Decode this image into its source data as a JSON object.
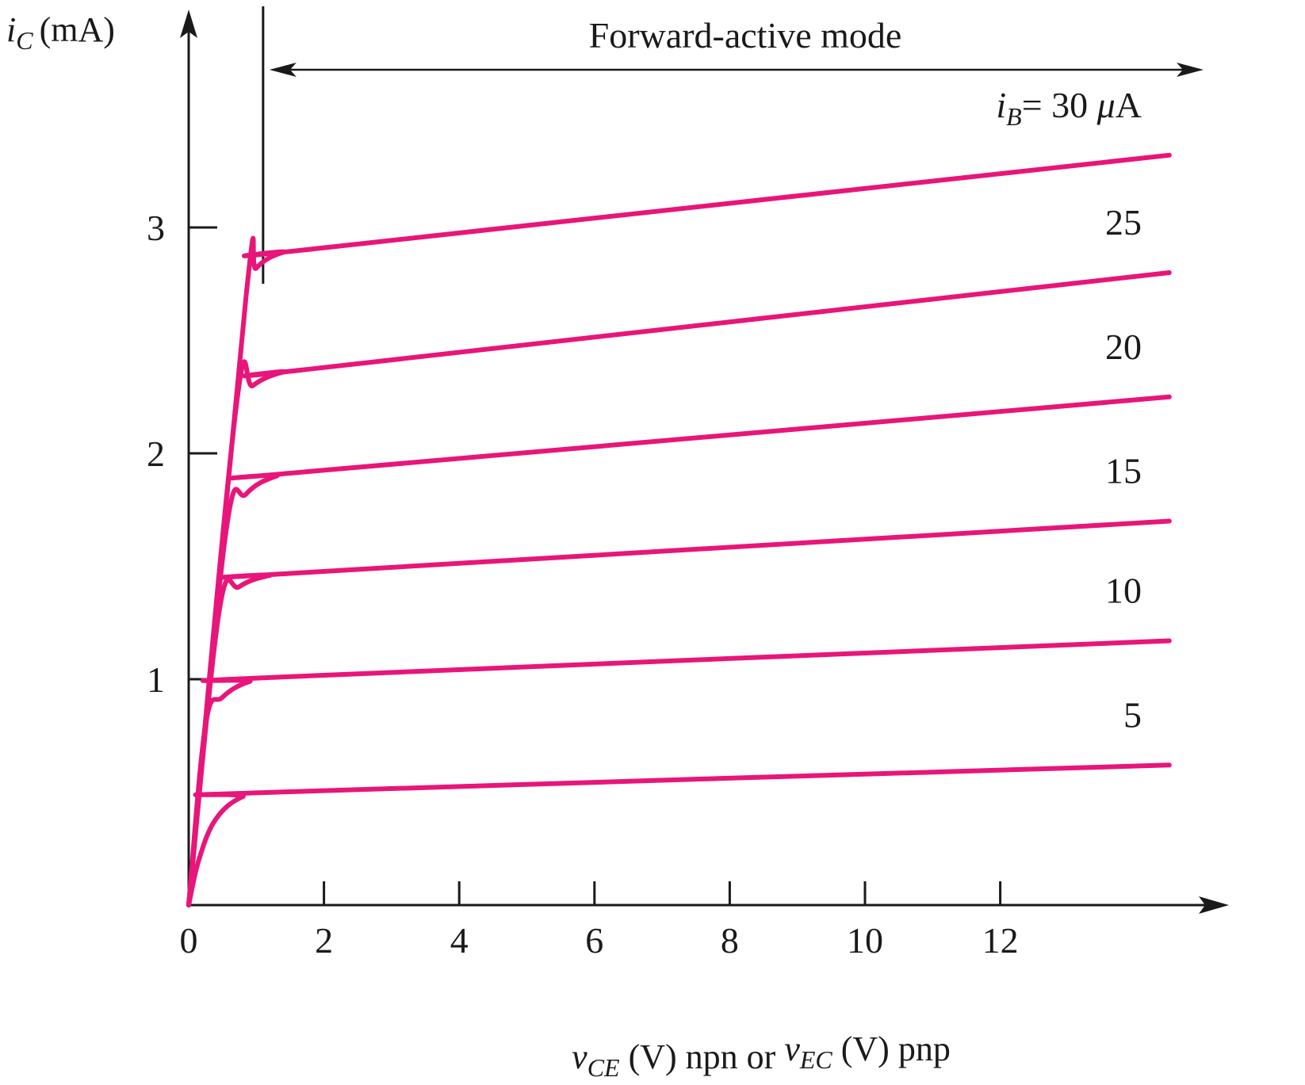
{
  "chart_data": {
    "type": "line",
    "y_axis": {
      "var": "i",
      "sub": "C",
      "unit": "(mA)"
    },
    "x_axis": {
      "parts": [
        {
          "text": "v",
          "italic": true
        },
        {
          "text": "CE",
          "italic": true,
          "sub": true
        },
        {
          "text": " (V) npn or "
        },
        {
          "text": "v",
          "italic": true
        },
        {
          "text": "EC",
          "italic": true,
          "sub": true
        },
        {
          "text": " (V) pnp"
        }
      ]
    },
    "xlim": [
      0,
      14.5
    ],
    "ylim": [
      0,
      3.9
    ],
    "x_ticks": [
      0,
      2,
      4,
      6,
      8,
      10,
      12
    ],
    "x_tick_labels": [
      "0",
      "2",
      "4",
      "6",
      "8",
      "10",
      "12"
    ],
    "y_ticks": [
      1,
      2,
      3
    ],
    "y_tick_labels": [
      "1",
      "2",
      "3"
    ],
    "annotation": {
      "text": "Forward-active mode",
      "boundary_x": 1.1,
      "arrow_from_x": 1.1,
      "arrow_to_x": 14.3,
      "arrow_y": 3.75
    },
    "curve_label_prefix": {
      "var": "i",
      "sub": "B",
      "eq": "= 30 ",
      "unit_var": "μ",
      "unit": "A"
    },
    "line_color": "#e8157a",
    "series": [
      {
        "name": "5",
        "values": [
          [
            0,
            0
          ],
          [
            0.15,
            0.2
          ],
          [
            0.4,
            0.38
          ],
          [
            0.8,
            0.48
          ],
          [
            1.3,
            0.5
          ],
          [
            14.5,
            0.62
          ]
        ]
      },
      {
        "name": "10",
        "values": [
          [
            0,
            0
          ],
          [
            0.25,
            0.8
          ],
          [
            0.5,
            0.92
          ],
          [
            0.9,
            0.99
          ],
          [
            1.4,
            1.01
          ],
          [
            14.5,
            1.17
          ]
        ]
      },
      {
        "name": "15",
        "values": [
          [
            0,
            0
          ],
          [
            0.45,
            1.3
          ],
          [
            0.75,
            1.41
          ],
          [
            1.2,
            1.46
          ],
          [
            1.6,
            1.47
          ],
          [
            14.5,
            1.7
          ]
        ]
      },
      {
        "name": "20",
        "values": [
          [
            0,
            0
          ],
          [
            0.55,
            1.65
          ],
          [
            0.85,
            1.82
          ],
          [
            1.3,
            1.9
          ],
          [
            1.8,
            1.92
          ],
          [
            14.5,
            2.25
          ]
        ]
      },
      {
        "name": "25",
        "values": [
          [
            0,
            0
          ],
          [
            0.7,
            2.2
          ],
          [
            0.95,
            2.3
          ],
          [
            1.4,
            2.36
          ],
          [
            2.0,
            2.38
          ],
          [
            14.5,
            2.8
          ]
        ]
      },
      {
        "name": "30",
        "values": [
          [
            0,
            0
          ],
          [
            0.85,
            2.7
          ],
          [
            1.0,
            2.82
          ],
          [
            1.4,
            2.89
          ],
          [
            2.0,
            2.91
          ],
          [
            14.5,
            3.32
          ]
        ]
      }
    ]
  }
}
